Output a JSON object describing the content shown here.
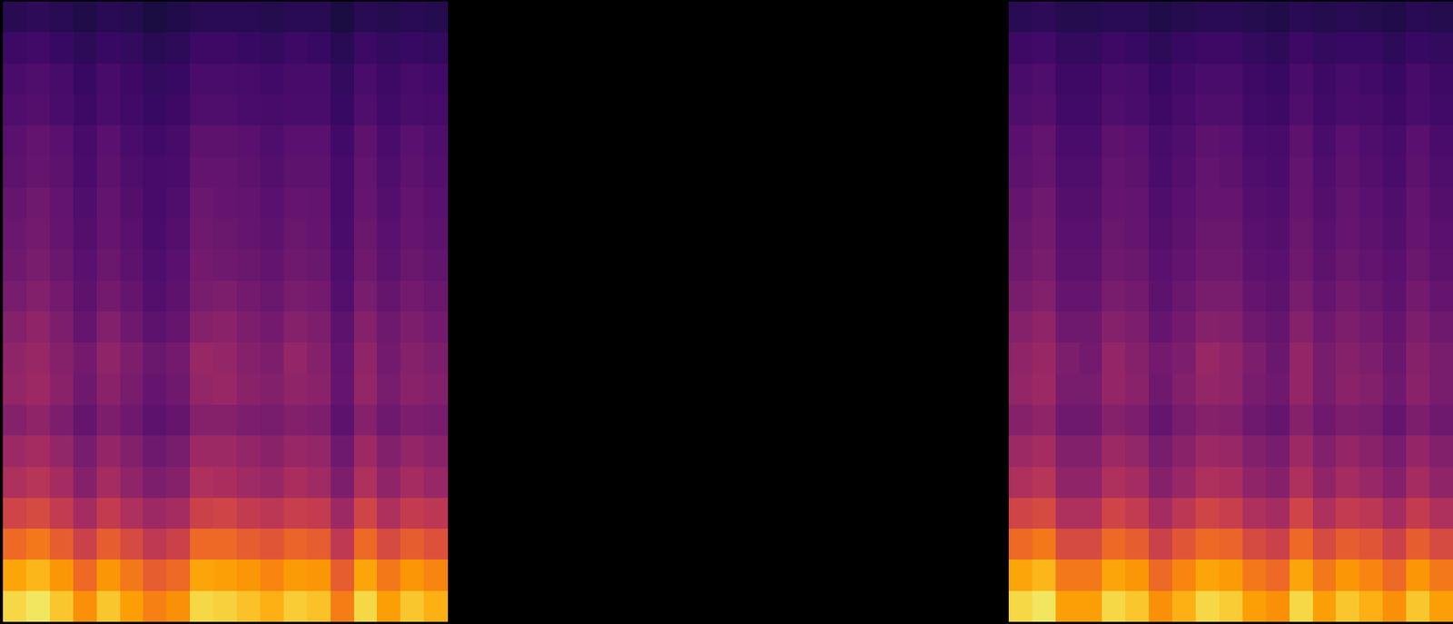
{
  "chart_data": {
    "type": "heatmap",
    "tick_labels": false,
    "color_range": [
      10,
      100
    ],
    "cells": [
      [
        23,
        24,
        23,
        21,
        23,
        22,
        20,
        21,
        23,
        23,
        23,
        22,
        23,
        23,
        20,
        23,
        22,
        23,
        22,
        null,
        null,
        null,
        null,
        null,
        null,
        null,
        null,
        null,
        null,
        null,
        null,
        null,
        null,
        null,
        null,
        null,
        null,
        null,
        null,
        null,
        null,
        null,
        null,
        23,
        24,
        22,
        22,
        23,
        23,
        21,
        22,
        23,
        23,
        22,
        21,
        23,
        22,
        23,
        22,
        21,
        23,
        22
      ],
      [
        27,
        28,
        26,
        24,
        26,
        25,
        23,
        24,
        27,
        27,
        26,
        25,
        27,
        26,
        23,
        27,
        25,
        26,
        25,
        null,
        null,
        null,
        null,
        null,
        null,
        null,
        null,
        null,
        null,
        null,
        null,
        null,
        null,
        null,
        null,
        null,
        null,
        null,
        null,
        null,
        null,
        null,
        null,
        27,
        28,
        25,
        25,
        27,
        26,
        24,
        26,
        27,
        27,
        25,
        24,
        27,
        25,
        26,
        26,
        24,
        26,
        25
      ],
      [
        30,
        31,
        29,
        26,
        29,
        27,
        25,
        26,
        30,
        30,
        29,
        28,
        29,
        29,
        25,
        30,
        27,
        29,
        28,
        null,
        null,
        null,
        null,
        null,
        null,
        null,
        null,
        null,
        null,
        null,
        null,
        null,
        null,
        null,
        null,
        null,
        null,
        null,
        null,
        null,
        null,
        null,
        null,
        30,
        31,
        27,
        27,
        30,
        29,
        26,
        28,
        30,
        30,
        27,
        26,
        30,
        27,
        29,
        28,
        26,
        29,
        27
      ],
      [
        31,
        32,
        30,
        27,
        30,
        28,
        26,
        27,
        31,
        31,
        30,
        29,
        30,
        30,
        26,
        31,
        28,
        30,
        29,
        null,
        null,
        null,
        null,
        null,
        null,
        null,
        null,
        null,
        null,
        null,
        null,
        null,
        null,
        null,
        null,
        null,
        null,
        null,
        null,
        null,
        null,
        null,
        null,
        31,
        32,
        28,
        28,
        31,
        30,
        27,
        29,
        31,
        31,
        28,
        27,
        31,
        28,
        30,
        29,
        27,
        30,
        28
      ],
      [
        33,
        35,
        33,
        29,
        33,
        30,
        28,
        29,
        34,
        34,
        33,
        31,
        33,
        33,
        28,
        34,
        30,
        33,
        31,
        null,
        null,
        null,
        null,
        null,
        null,
        null,
        null,
        null,
        null,
        null,
        null,
        null,
        null,
        null,
        null,
        null,
        null,
        null,
        null,
        null,
        null,
        null,
        null,
        33,
        35,
        30,
        30,
        34,
        33,
        29,
        31,
        34,
        33,
        30,
        29,
        34,
        30,
        33,
        31,
        29,
        33,
        30
      ],
      [
        34,
        36,
        34,
        30,
        34,
        31,
        29,
        30,
        35,
        35,
        34,
        32,
        34,
        34,
        29,
        35,
        31,
        34,
        32,
        null,
        null,
        null,
        null,
        null,
        null,
        null,
        null,
        null,
        null,
        null,
        null,
        null,
        null,
        null,
        null,
        null,
        null,
        null,
        null,
        null,
        null,
        null,
        null,
        34,
        36,
        31,
        31,
        35,
        34,
        30,
        32,
        35,
        34,
        31,
        30,
        35,
        31,
        34,
        32,
        30,
        34,
        31
      ],
      [
        36,
        38,
        35,
        31,
        35,
        32,
        29,
        31,
        37,
        36,
        35,
        33,
        36,
        35,
        29,
        36,
        32,
        35,
        33,
        null,
        null,
        null,
        null,
        null,
        null,
        null,
        null,
        null,
        null,
        null,
        null,
        null,
        null,
        null,
        null,
        null,
        null,
        null,
        null,
        null,
        null,
        null,
        null,
        36,
        38,
        32,
        32,
        36,
        35,
        31,
        33,
        36,
        36,
        32,
        31,
        36,
        32,
        35,
        33,
        31,
        35,
        32
      ],
      [
        37,
        39,
        36,
        32,
        36,
        33,
        30,
        32,
        38,
        37,
        36,
        34,
        37,
        36,
        30,
        37,
        33,
        36,
        34,
        null,
        null,
        null,
        null,
        null,
        null,
        null,
        null,
        null,
        null,
        null,
        null,
        null,
        null,
        null,
        null,
        null,
        null,
        null,
        null,
        null,
        null,
        null,
        null,
        37,
        39,
        33,
        33,
        37,
        36,
        32,
        34,
        37,
        37,
        33,
        32,
        37,
        33,
        36,
        34,
        32,
        36,
        33
      ],
      [
        38,
        40,
        37,
        33,
        37,
        34,
        31,
        33,
        39,
        38,
        37,
        35,
        38,
        37,
        31,
        38,
        34,
        37,
        35,
        null,
        null,
        null,
        null,
        null,
        null,
        null,
        null,
        null,
        null,
        null,
        null,
        null,
        null,
        null,
        null,
        null,
        null,
        null,
        null,
        null,
        null,
        null,
        null,
        38,
        40,
        34,
        34,
        38,
        37,
        33,
        35,
        38,
        38,
        34,
        33,
        38,
        34,
        37,
        35,
        33,
        37,
        34
      ],
      [
        40,
        42,
        39,
        34,
        39,
        36,
        32,
        34,
        40,
        41,
        39,
        37,
        40,
        39,
        32,
        40,
        36,
        39,
        37,
        null,
        null,
        null,
        null,
        null,
        null,
        null,
        null,
        null,
        null,
        null,
        null,
        null,
        null,
        null,
        null,
        null,
        null,
        null,
        null,
        null,
        null,
        null,
        null,
        40,
        42,
        36,
        36,
        40,
        39,
        34,
        37,
        40,
        40,
        36,
        34,
        40,
        36,
        39,
        37,
        34,
        39,
        36
      ],
      [
        43,
        45,
        41,
        36,
        42,
        38,
        34,
        36,
        43,
        44,
        41,
        39,
        43,
        41,
        34,
        43,
        38,
        41,
        39,
        null,
        null,
        null,
        null,
        null,
        null,
        null,
        null,
        null,
        null,
        null,
        null,
        null,
        null,
        null,
        null,
        null,
        null,
        null,
        null,
        null,
        null,
        null,
        null,
        43,
        45,
        38,
        38,
        43,
        41,
        36,
        39,
        43,
        42,
        38,
        36,
        43,
        38,
        41,
        39,
        36,
        41,
        38
      ],
      [
        45,
        47,
        43,
        39,
        45,
        41,
        37,
        39,
        47,
        46,
        43,
        41,
        46,
        43,
        35,
        45,
        39,
        43,
        41,
        null,
        null,
        null,
        null,
        null,
        null,
        null,
        null,
        null,
        null,
        null,
        null,
        null,
        null,
        null,
        null,
        null,
        null,
        null,
        null,
        null,
        null,
        null,
        null,
        45,
        47,
        41,
        39,
        46,
        43,
        39,
        41,
        47,
        45,
        41,
        37,
        46,
        40,
        43,
        41,
        37,
        43,
        40
      ],
      [
        46,
        48,
        44,
        38,
        44,
        40,
        36,
        38,
        46,
        47,
        44,
        42,
        45,
        44,
        36,
        46,
        40,
        44,
        42,
        null,
        null,
        null,
        null,
        null,
        null,
        null,
        null,
        null,
        null,
        null,
        null,
        null,
        null,
        null,
        null,
        null,
        null,
        null,
        null,
        null,
        null,
        null,
        null,
        46,
        48,
        40,
        40,
        46,
        44,
        38,
        42,
        46,
        45,
        40,
        38,
        46,
        40,
        44,
        42,
        38,
        44,
        40
      ],
      [
        43,
        45,
        41,
        36,
        41,
        38,
        34,
        36,
        43,
        43,
        41,
        40,
        42,
        41,
        34,
        43,
        38,
        41,
        40,
        null,
        null,
        null,
        null,
        null,
        null,
        null,
        null,
        null,
        null,
        null,
        null,
        null,
        null,
        null,
        null,
        null,
        null,
        null,
        null,
        null,
        null,
        null,
        null,
        43,
        45,
        38,
        38,
        43,
        41,
        36,
        40,
        43,
        42,
        38,
        36,
        43,
        38,
        41,
        40,
        36,
        41,
        38
      ],
      [
        48,
        50,
        46,
        40,
        46,
        42,
        38,
        40,
        48,
        48,
        46,
        44,
        47,
        46,
        38,
        48,
        42,
        46,
        44,
        null,
        null,
        null,
        null,
        null,
        null,
        null,
        null,
        null,
        null,
        null,
        null,
        null,
        null,
        null,
        null,
        null,
        null,
        null,
        null,
        null,
        null,
        null,
        null,
        48,
        50,
        42,
        42,
        48,
        46,
        40,
        44,
        48,
        47,
        42,
        40,
        48,
        42,
        46,
        44,
        40,
        46,
        42
      ],
      [
        52,
        54,
        50,
        43,
        50,
        45,
        41,
        43,
        52,
        51,
        49,
        47,
        51,
        49,
        41,
        52,
        45,
        50,
        47,
        null,
        null,
        null,
        null,
        null,
        null,
        null,
        null,
        null,
        null,
        null,
        null,
        null,
        null,
        null,
        null,
        null,
        null,
        null,
        null,
        null,
        null,
        null,
        null,
        52,
        54,
        45,
        45,
        52,
        50,
        43,
        47,
        52,
        51,
        45,
        43,
        52,
        45,
        50,
        47,
        43,
        50,
        45
      ],
      [
        60,
        62,
        57,
        50,
        57,
        52,
        48,
        50,
        59,
        60,
        57,
        55,
        58,
        57,
        48,
        60,
        52,
        57,
        55,
        null,
        null,
        null,
        null,
        null,
        null,
        null,
        null,
        null,
        null,
        null,
        null,
        null,
        null,
        null,
        null,
        null,
        null,
        null,
        null,
        null,
        null,
        null,
        null,
        60,
        62,
        52,
        52,
        60,
        57,
        50,
        55,
        60,
        58,
        52,
        50,
        60,
        52,
        57,
        55,
        50,
        57,
        52
      ],
      [
        70,
        73,
        67,
        59,
        67,
        62,
        56,
        59,
        70,
        70,
        67,
        65,
        69,
        67,
        56,
        70,
        62,
        67,
        64,
        null,
        null,
        null,
        null,
        null,
        null,
        null,
        null,
        null,
        null,
        null,
        null,
        null,
        null,
        null,
        null,
        null,
        null,
        null,
        null,
        null,
        null,
        null,
        null,
        70,
        73,
        62,
        62,
        70,
        67,
        59,
        65,
        70,
        69,
        62,
        59,
        70,
        62,
        67,
        65,
        59,
        67,
        62
      ],
      [
        82,
        85,
        79,
        70,
        79,
        73,
        67,
        70,
        82,
        81,
        79,
        76,
        80,
        79,
        67,
        82,
        73,
        79,
        76,
        null,
        null,
        null,
        null,
        null,
        null,
        null,
        null,
        null,
        null,
        null,
        null,
        null,
        null,
        null,
        null,
        null,
        null,
        null,
        null,
        null,
        null,
        null,
        null,
        82,
        85,
        73,
        73,
        82,
        79,
        70,
        76,
        82,
        80,
        73,
        70,
        82,
        73,
        79,
        76,
        70,
        79,
        73
      ],
      [
        91,
        94,
        88,
        78,
        88,
        81,
        75,
        78,
        91,
        90,
        87,
        84,
        89,
        87,
        74,
        91,
        81,
        88,
        84,
        null,
        null,
        null,
        null,
        null,
        null,
        null,
        null,
        null,
        null,
        null,
        null,
        null,
        null,
        null,
        null,
        null,
        null,
        null,
        null,
        null,
        null,
        null,
        null,
        91,
        94,
        81,
        81,
        91,
        88,
        78,
        84,
        91,
        89,
        81,
        78,
        91,
        81,
        88,
        84,
        78,
        88,
        81
      ]
    ]
  }
}
